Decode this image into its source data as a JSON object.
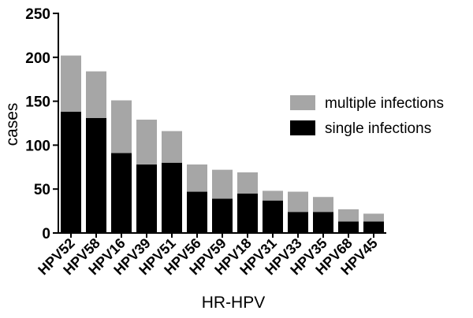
{
  "chart_data": {
    "type": "stacked_bar",
    "x_label": "HR-HPV",
    "y_label": "cases",
    "categories": [
      "HPV52",
      "HPV58",
      "HPV16",
      "HPV39",
      "HPV51",
      "HPV56",
      "HPV59",
      "HPV18",
      "HPV31",
      "HPV33",
      "HPV35",
      "HPV68",
      "HPV45"
    ],
    "series": [
      {
        "name": "single infections",
        "color": "#000000",
        "values": [
          138,
          131,
          91,
          78,
          80,
          47,
          39,
          45,
          37,
          24,
          24,
          13,
          13
        ]
      },
      {
        "name": "multiple infections",
        "color": "#a6a6a6",
        "values": [
          64,
          53,
          60,
          51,
          36,
          31,
          33,
          24,
          11,
          23,
          17,
          14,
          9
        ]
      }
    ],
    "ylim": [
      0,
      250
    ],
    "yticks": [
      0,
      50,
      100,
      150,
      200,
      250
    ],
    "grid": false,
    "legend": "right"
  }
}
